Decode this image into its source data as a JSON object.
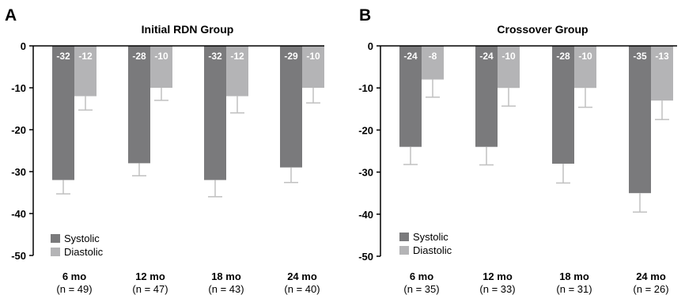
{
  "colors": {
    "systolic": "#7a7a7c",
    "diastolic": "#b4b4b6",
    "error_bar": "#c0c0c0",
    "axis": "#000000"
  },
  "chart_data": [
    {
      "type": "bar",
      "panel": "A",
      "title": "Initial RDN Group",
      "categories": [
        "6 mo",
        "12 mo",
        "18 mo",
        "24 mo"
      ],
      "category_sublabels": [
        "(n = 49)",
        "(n = 47)",
        "(n = 43)",
        "(n = 40)"
      ],
      "ylim": [
        -50,
        0
      ],
      "yticks": [
        0,
        -10,
        -20,
        -30,
        -40,
        -50
      ],
      "legend_position": "bottom-left",
      "series": [
        {
          "name": "Systolic",
          "values": [
            -32,
            -28,
            -32,
            -29
          ],
          "errors": [
            3.3,
            3.0,
            4.0,
            3.6
          ],
          "labels": [
            "-32",
            "-28",
            "-32",
            "-29"
          ]
        },
        {
          "name": "Diastolic",
          "values": [
            -12,
            -10,
            -12,
            -10
          ],
          "errors": [
            3.3,
            3.0,
            4.0,
            3.6
          ],
          "labels": [
            "-12",
            "-10",
            "-12",
            "-10"
          ]
        }
      ]
    },
    {
      "type": "bar",
      "panel": "B",
      "title": "Crossover Group",
      "categories": [
        "6 mo",
        "12 mo",
        "18 mo",
        "24 mo"
      ],
      "category_sublabels": [
        "(n = 35)",
        "(n = 33)",
        "(n = 31)",
        "(n = 26)"
      ],
      "ylim": [
        -50,
        0
      ],
      "yticks": [
        0,
        -10,
        -20,
        -30,
        -40,
        -50
      ],
      "legend_position": "bottom-left",
      "series": [
        {
          "name": "Systolic",
          "values": [
            -24,
            -24,
            -28,
            -35
          ],
          "errors": [
            4.2,
            4.3,
            4.6,
            4.5
          ],
          "labels": [
            "-24",
            "-24",
            "-28",
            "-35"
          ]
        },
        {
          "name": "Diastolic",
          "values": [
            -8,
            -10,
            -10,
            -13
          ],
          "errors": [
            4.2,
            4.3,
            4.6,
            4.5
          ],
          "labels": [
            "-8",
            "-10",
            "-10",
            "-13"
          ]
        }
      ]
    }
  ]
}
